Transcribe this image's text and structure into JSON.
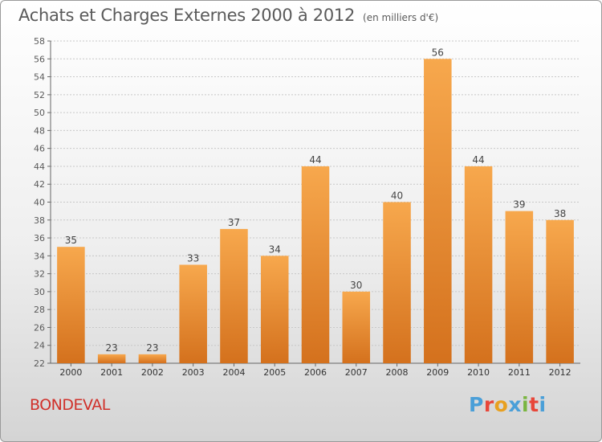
{
  "title": "Achats et Charges Externes 2000 à 2012",
  "unit": "(en milliers d'€)",
  "town": "BONDEVAL",
  "logo": {
    "letters": [
      "P",
      "r",
      "o",
      "x",
      "i",
      "t",
      "i"
    ],
    "colors": [
      "#4a9fd8",
      "#e8473a",
      "#e8a020",
      "#4a9fd8",
      "#7ab540",
      "#e8473a",
      "#4a9fd8"
    ]
  },
  "colors": {
    "bar_light": "#f7a84d",
    "bar_dark": "#d4711d",
    "text": "#5a5a5a"
  },
  "chart_data": {
    "type": "bar",
    "categories": [
      "2000",
      "2001",
      "2002",
      "2003",
      "2004",
      "2005",
      "2006",
      "2007",
      "2008",
      "2009",
      "2010",
      "2011",
      "2012"
    ],
    "values": [
      35,
      23,
      23,
      33,
      37,
      34,
      44,
      30,
      40,
      56,
      44,
      39,
      38
    ],
    "ylim": [
      22,
      58
    ],
    "yticks": [
      22,
      24,
      26,
      28,
      30,
      32,
      34,
      36,
      38,
      40,
      42,
      44,
      46,
      48,
      50,
      52,
      54,
      56,
      58
    ],
    "grid": true
  }
}
